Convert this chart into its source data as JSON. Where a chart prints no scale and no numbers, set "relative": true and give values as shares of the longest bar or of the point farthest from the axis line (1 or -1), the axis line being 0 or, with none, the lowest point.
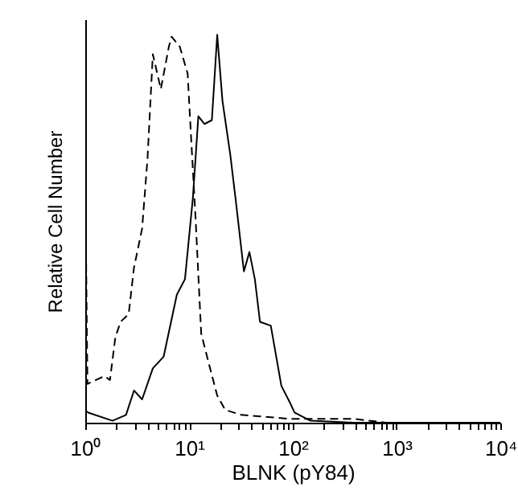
{
  "chart_data": {
    "type": "line",
    "relative": true,
    "xlabel": "BLNK (pY84)",
    "ylabel": "Relative Cell Number",
    "log": "x",
    "xlim": [
      1,
      10000
    ],
    "xticks": [
      {
        "value": 1,
        "label": "10⁰"
      },
      {
        "value": 2,
        "label": null
      },
      {
        "value": 3,
        "label": null
      },
      {
        "value": 4,
        "label": null
      },
      {
        "value": 5,
        "label": null
      },
      {
        "value": 6,
        "label": null
      },
      {
        "value": 7,
        "label": null
      },
      {
        "value": 8,
        "label": null
      },
      {
        "value": 9,
        "label": null
      },
      {
        "value": 10,
        "label": "10¹"
      },
      {
        "value": 20,
        "label": null
      },
      {
        "value": 30,
        "label": null
      },
      {
        "value": 40,
        "label": null
      },
      {
        "value": 50,
        "label": null
      },
      {
        "value": 60,
        "label": null
      },
      {
        "value": 70,
        "label": null
      },
      {
        "value": 80,
        "label": null
      },
      {
        "value": 90,
        "label": null
      },
      {
        "value": 100,
        "label": "10²"
      },
      {
        "value": 200,
        "label": null
      },
      {
        "value": 300,
        "label": null
      },
      {
        "value": 400,
        "label": null
      },
      {
        "value": 500,
        "label": null
      },
      {
        "value": 600,
        "label": null
      },
      {
        "value": 700,
        "label": null
      },
      {
        "value": 800,
        "label": null
      },
      {
        "value": 900,
        "label": null
      },
      {
        "value": 1000,
        "label": "10³"
      },
      {
        "value": 2000,
        "label": null
      },
      {
        "value": 3000,
        "label": null
      },
      {
        "value": 4000,
        "label": null
      },
      {
        "value": 5000,
        "label": null
      },
      {
        "value": 6000,
        "label": null
      },
      {
        "value": 7000,
        "label": null
      },
      {
        "value": 8000,
        "label": null
      },
      {
        "value": 9000,
        "label": null
      },
      {
        "value": 10000,
        "label": "10⁴"
      }
    ],
    "tick_labels": "x",
    "grid": false,
    "marker": "none",
    "series": [
      {
        "color": "#000000",
        "line_style": "dashed",
        "x": [
          1.02,
          1.05,
          1.53,
          1.73,
          1.95,
          2.19,
          2.62,
          2.95,
          3.53,
          3.98,
          4.48,
          5.35,
          6.4,
          6.8,
          8.13,
          9.7,
          10.3,
          11.6,
          13.1,
          15.6,
          18.7,
          22.3,
          31.9,
          93,
          388,
          790,
          10000
        ],
        "values": [
          0.41,
          0.1,
          0.12,
          0.11,
          0.22,
          0.26,
          0.28,
          0.4,
          0.5,
          0.68,
          0.95,
          0.86,
          0.97,
          0.995,
          0.97,
          0.9,
          0.77,
          0.52,
          0.23,
          0.15,
          0.07,
          0.033,
          0.02,
          0.01,
          0.01,
          0,
          0
        ]
      },
      {
        "color": "#000000",
        "line_style": "solid",
        "x": [
          1.02,
          1.07,
          1.83,
          2.47,
          2.95,
          3.53,
          4.48,
          5.69,
          7.63,
          9.14,
          10.9,
          12.3,
          14.1,
          16.6,
          18.7,
          21,
          25,
          28.3,
          33.8,
          38.2,
          43.1,
          48.3,
          61.4,
          77.6,
          93,
          104,
          148,
          388,
          10000
        ],
        "values": [
          0.03,
          0.026,
          0.005,
          0.02,
          0.083,
          0.06,
          0.14,
          0.17,
          0.33,
          0.37,
          0.58,
          0.79,
          0.77,
          0.78,
          1,
          0.83,
          0.69,
          0.57,
          0.39,
          0.44,
          0.37,
          0.26,
          0.25,
          0.095,
          0.054,
          0.026,
          0.005,
          0,
          0
        ]
      }
    ]
  }
}
